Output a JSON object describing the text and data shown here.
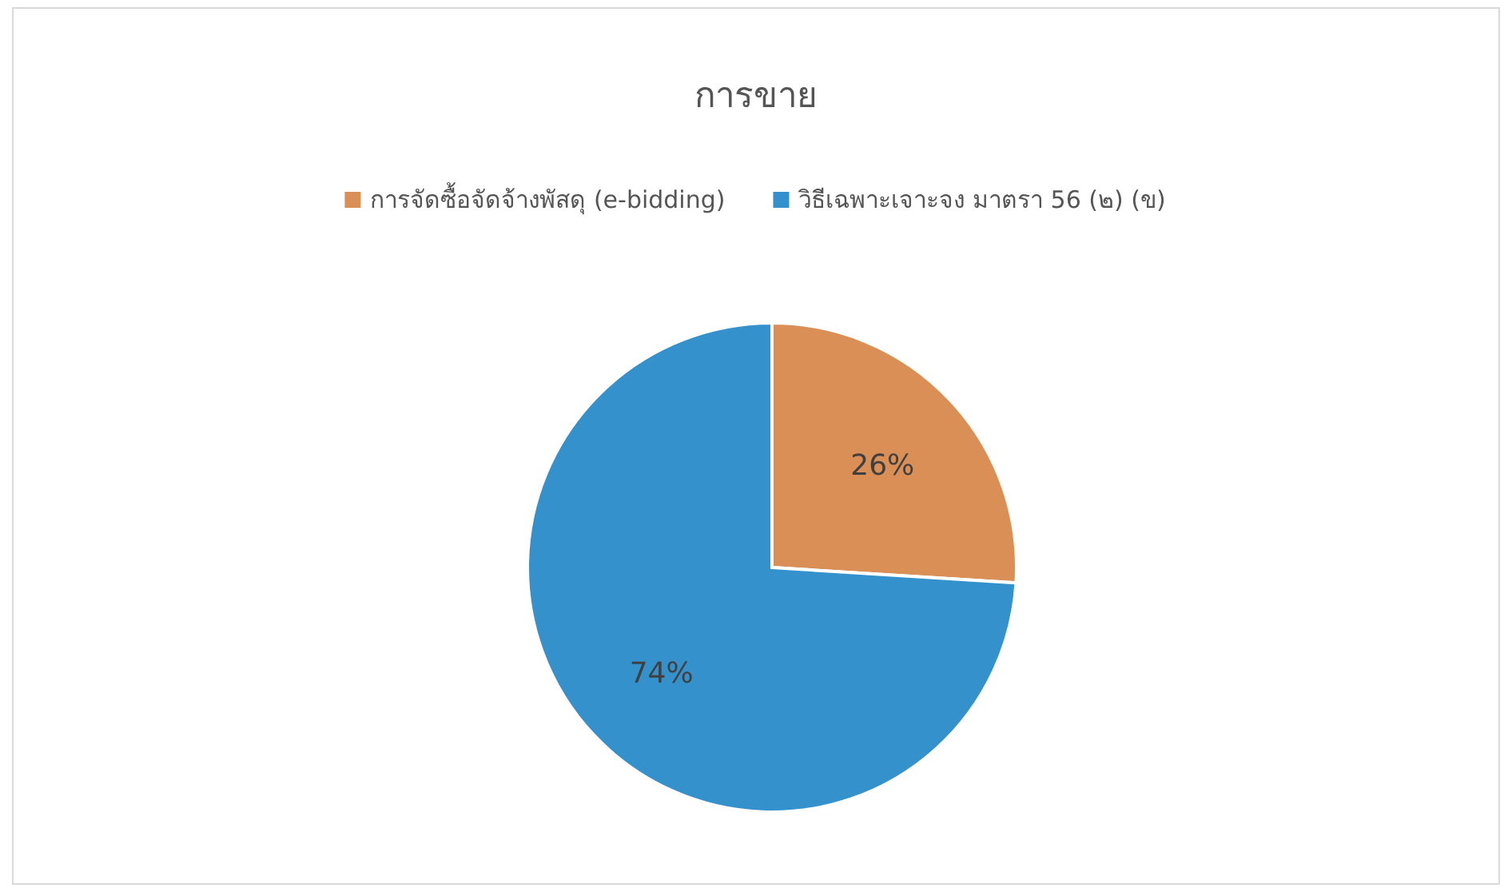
{
  "chart_data": {
    "type": "pie",
    "title": "การขาย",
    "categories": [
      "การจัดซื้อจัดจ้างพัสดุ (e-bidding)",
      "วิธีเฉพาะเจาะจง มาตรา 56 (๒) (ข)"
    ],
    "values": [
      26,
      74
    ],
    "value_labels": [
      "26%",
      "74%"
    ],
    "colors": [
      "#d98f55",
      "#3591cc"
    ],
    "legend": "top"
  }
}
